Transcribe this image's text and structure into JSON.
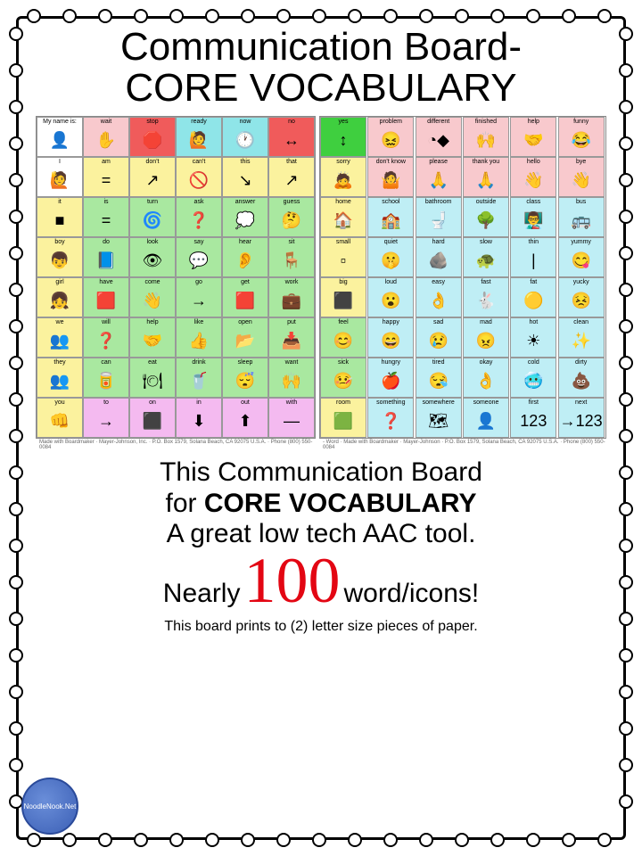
{
  "title_line1": "Communication Board-",
  "title_line2": "CORE VOCABULARY",
  "desc_line1": "This Communication Board",
  "desc_line2_prefix": "for ",
  "desc_line2_bold": "CORE VOCABULARY",
  "desc_line3": "A great low tech AAC tool.",
  "nearly": "Nearly",
  "hundred": "100",
  "wordicons": "word/icons!",
  "footnote": "This board prints to (2) letter size pieces of paper.",
  "logo_text": "NoodleNook.Net",
  "credit_left": "Made with Boardmaker · Mayer-Johnson, Inc. · P.O. Box 1579, Solana Beach, CA 92075 U.S.A. · Phone (800) 550-0084",
  "credit_right": "- Word · Made with Boardmaker · Mayer-Johnson · P.O. Box 1579, Solana Beach, CA 92075 U.S.A. · Phone (800) 550-0084",
  "colors": {
    "red": "#f05b5b",
    "pink": "#f8c9cd",
    "yellow": "#fbf29e",
    "cyan": "#8fe5e8",
    "green": "#a9e8a0",
    "ltblue": "#bfeef5",
    "violet": "#f4baf0",
    "white": "#ffffff",
    "limegreen": "#3fcf3f"
  },
  "board_left": {
    "rows": [
      {
        "bg": "white",
        "first_bg": "white",
        "cells": [
          {
            "label": "My name is:",
            "icon": "👤"
          },
          {
            "label": "wait",
            "icon": "✋",
            "bg": "pink"
          },
          {
            "label": "stop",
            "icon": "🛑",
            "bg": "red"
          },
          {
            "label": "ready",
            "icon": "🙋",
            "bg": "cyan"
          },
          {
            "label": "now",
            "icon": "🕐",
            "bg": "cyan"
          },
          {
            "label": "no",
            "icon": "↔",
            "bg": "red"
          }
        ]
      },
      {
        "bg": "yellow",
        "cells": [
          {
            "label": "I",
            "icon": "🙋",
            "bg": "white"
          },
          {
            "label": "am",
            "icon": "="
          },
          {
            "label": "don't",
            "icon": "↗"
          },
          {
            "label": "can't",
            "icon": "🚫"
          },
          {
            "label": "this",
            "icon": "↘"
          },
          {
            "label": "that",
            "icon": "↗"
          }
        ]
      },
      {
        "bg": "green",
        "cells": [
          {
            "label": "it",
            "icon": "■",
            "bg": "yellow"
          },
          {
            "label": "is",
            "icon": "="
          },
          {
            "label": "turn",
            "icon": "🌀"
          },
          {
            "label": "ask",
            "icon": "❓"
          },
          {
            "label": "answer",
            "icon": "💭"
          },
          {
            "label": "guess",
            "icon": "🤔"
          }
        ]
      },
      {
        "bg": "green",
        "cells": [
          {
            "label": "boy",
            "icon": "👦",
            "bg": "yellow"
          },
          {
            "label": "do",
            "icon": "📘"
          },
          {
            "label": "look",
            "icon": "👁"
          },
          {
            "label": "say",
            "icon": "💬"
          },
          {
            "label": "hear",
            "icon": "👂"
          },
          {
            "label": "sit",
            "icon": "🪑"
          }
        ]
      },
      {
        "bg": "green",
        "cells": [
          {
            "label": "girl",
            "icon": "👧",
            "bg": "yellow"
          },
          {
            "label": "have",
            "icon": "🟥"
          },
          {
            "label": "come",
            "icon": "👋"
          },
          {
            "label": "go",
            "icon": "→"
          },
          {
            "label": "get",
            "icon": "🟥"
          },
          {
            "label": "work",
            "icon": "💼"
          }
        ]
      },
      {
        "bg": "green",
        "cells": [
          {
            "label": "we",
            "icon": "👥",
            "bg": "yellow"
          },
          {
            "label": "will",
            "icon": "❓"
          },
          {
            "label": "help",
            "icon": "🤝"
          },
          {
            "label": "like",
            "icon": "👍"
          },
          {
            "label": "open",
            "icon": "📂"
          },
          {
            "label": "put",
            "icon": "📥"
          }
        ]
      },
      {
        "bg": "green",
        "cells": [
          {
            "label": "they",
            "icon": "👥",
            "bg": "yellow"
          },
          {
            "label": "can",
            "icon": "🥫"
          },
          {
            "label": "eat",
            "icon": "🍽"
          },
          {
            "label": "drink",
            "icon": "🥤"
          },
          {
            "label": "sleep",
            "icon": "😴"
          },
          {
            "label": "want",
            "icon": "🙌"
          }
        ]
      },
      {
        "bg": "violet",
        "cells": [
          {
            "label": "you",
            "icon": "👊",
            "bg": "yellow"
          },
          {
            "label": "to",
            "icon": "→"
          },
          {
            "label": "on",
            "icon": "⬛"
          },
          {
            "label": "in",
            "icon": "⬇"
          },
          {
            "label": "out",
            "icon": "⬆"
          },
          {
            "label": "with",
            "icon": "—"
          }
        ]
      }
    ]
  },
  "board_right": {
    "rows": [
      {
        "bg": "pink",
        "cells": [
          {
            "label": "yes",
            "icon": "↕",
            "bg": "limegreen"
          },
          {
            "label": "problem",
            "icon": "😖"
          },
          {
            "label": "different",
            "icon": "◔◆"
          },
          {
            "label": "finished",
            "icon": "🙌"
          },
          {
            "label": "help",
            "icon": "🤝"
          },
          {
            "label": "funny",
            "icon": "😂"
          }
        ]
      },
      {
        "bg": "pink",
        "cells": [
          {
            "label": "sorry",
            "icon": "🙇",
            "bg": "yellow"
          },
          {
            "label": "don't know",
            "icon": "🤷"
          },
          {
            "label": "please",
            "icon": "🙏"
          },
          {
            "label": "thank you",
            "icon": "🙏"
          },
          {
            "label": "hello",
            "icon": "👋"
          },
          {
            "label": "bye",
            "icon": "👋"
          }
        ]
      },
      {
        "bg": "ltblue",
        "cells": [
          {
            "label": "home",
            "icon": "🏠",
            "bg": "yellow"
          },
          {
            "label": "school",
            "icon": "🏫"
          },
          {
            "label": "bathroom",
            "icon": "🚽"
          },
          {
            "label": "outside",
            "icon": "🌳"
          },
          {
            "label": "class",
            "icon": "👨‍🏫"
          },
          {
            "label": "bus",
            "icon": "🚌"
          }
        ]
      },
      {
        "bg": "ltblue",
        "cells": [
          {
            "label": "small",
            "icon": "▫",
            "bg": "yellow"
          },
          {
            "label": "quiet",
            "icon": "🤫"
          },
          {
            "label": "hard",
            "icon": "🪨"
          },
          {
            "label": "slow",
            "icon": "🐢"
          },
          {
            "label": "thin",
            "icon": "|"
          },
          {
            "label": "yummy",
            "icon": "😋"
          }
        ]
      },
      {
        "bg": "ltblue",
        "cells": [
          {
            "label": "big",
            "icon": "⬛",
            "bg": "yellow"
          },
          {
            "label": "loud",
            "icon": "😮"
          },
          {
            "label": "easy",
            "icon": "👌"
          },
          {
            "label": "fast",
            "icon": "🐇"
          },
          {
            "label": "fat",
            "icon": "🟡"
          },
          {
            "label": "yucky",
            "icon": "😣"
          }
        ]
      },
      {
        "bg": "ltblue",
        "cells": [
          {
            "label": "feel",
            "icon": "😊",
            "bg": "green"
          },
          {
            "label": "happy",
            "icon": "😄"
          },
          {
            "label": "sad",
            "icon": "😢"
          },
          {
            "label": "mad",
            "icon": "😠"
          },
          {
            "label": "hot",
            "icon": "☀"
          },
          {
            "label": "clean",
            "icon": "✨"
          }
        ]
      },
      {
        "bg": "ltblue",
        "cells": [
          {
            "label": "sick",
            "icon": "🤒",
            "bg": "green"
          },
          {
            "label": "hungry",
            "icon": "🍎"
          },
          {
            "label": "tired",
            "icon": "😪"
          },
          {
            "label": "okay",
            "icon": "👌"
          },
          {
            "label": "cold",
            "icon": "🥶"
          },
          {
            "label": "dirty",
            "icon": "💩"
          }
        ]
      },
      {
        "bg": "ltblue",
        "cells": [
          {
            "label": "room",
            "icon": "🟩",
            "bg": "yellow"
          },
          {
            "label": "something",
            "icon": "❓"
          },
          {
            "label": "somewhere",
            "icon": "🗺"
          },
          {
            "label": "someone",
            "icon": "👤"
          },
          {
            "label": "first",
            "icon": "123"
          },
          {
            "label": "next",
            "icon": "→123"
          }
        ]
      }
    ]
  }
}
